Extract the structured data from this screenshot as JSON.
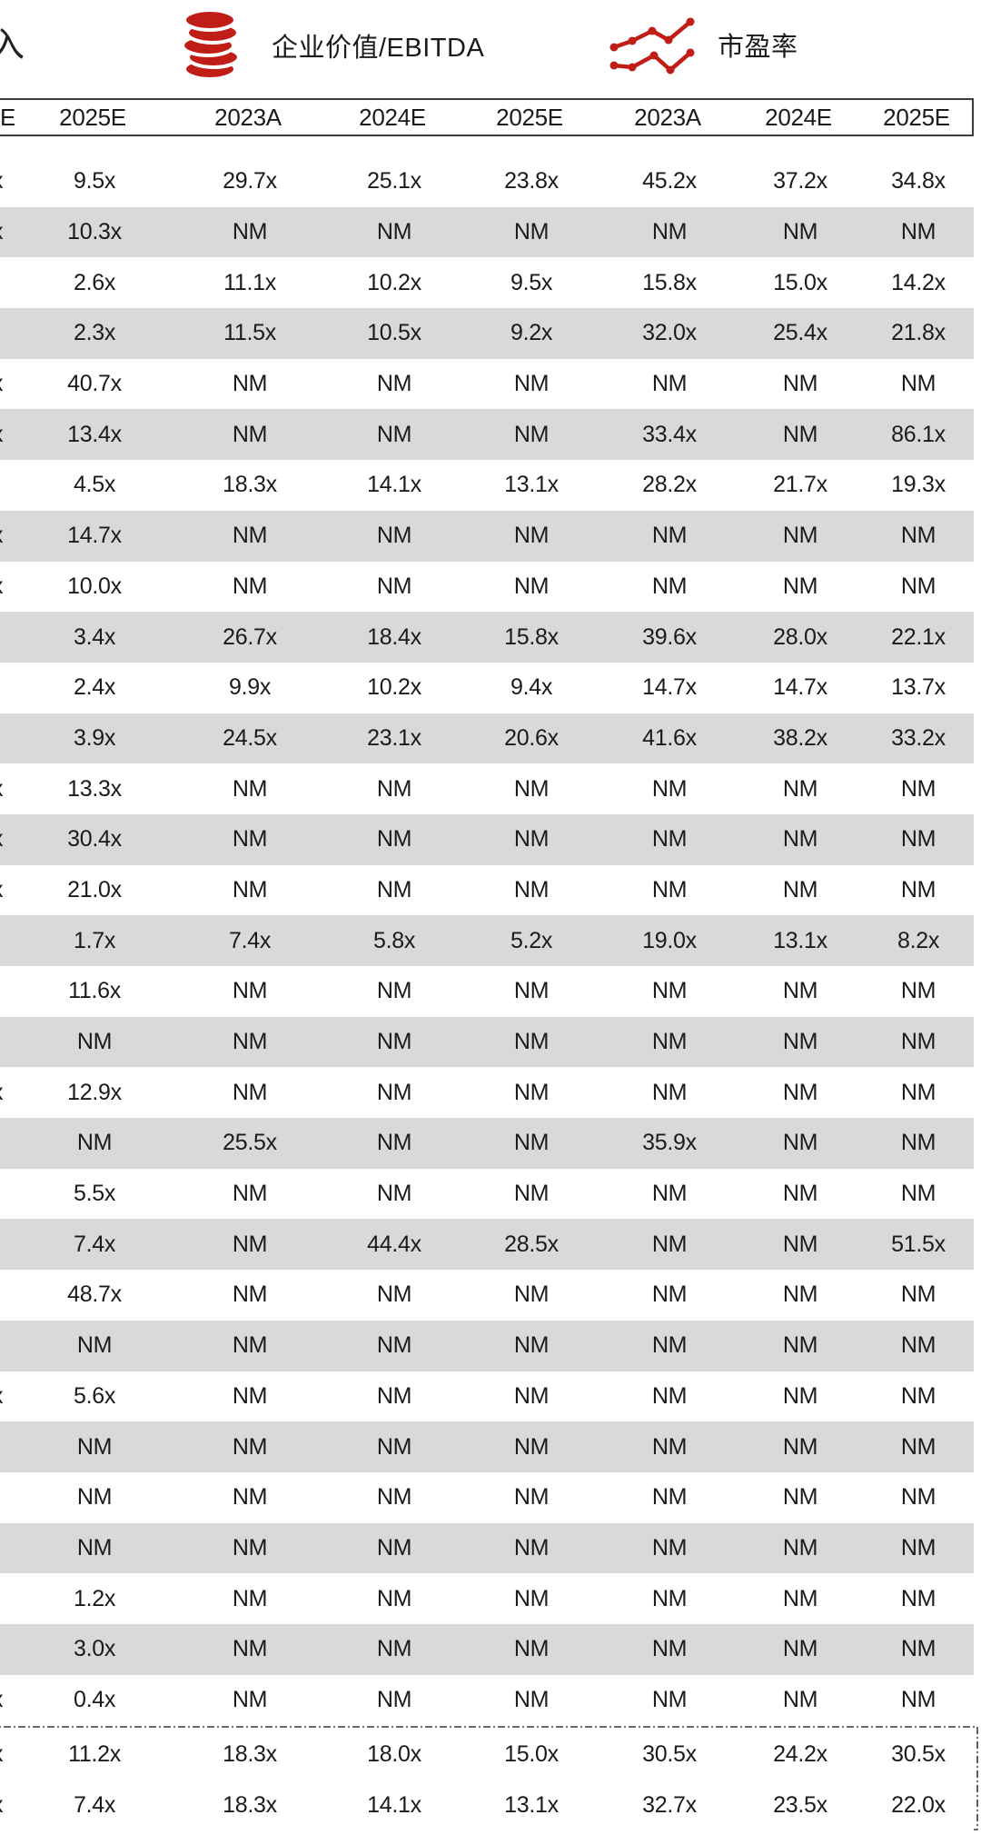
{
  "header": {
    "cutoff_fragment": "入",
    "metrics": [
      {
        "icon": "coins-icon",
        "label": "企业价值/EBITDA"
      },
      {
        "icon": "line-chart-icon",
        "label": "市盈率"
      }
    ]
  },
  "table": {
    "column_headers": [
      "E",
      "2025E",
      "2023A",
      "2024E",
      "2025E",
      "2023A",
      "2024E",
      "2025E"
    ],
    "rows": [
      [
        "x",
        "9.5x",
        "29.7x",
        "25.1x",
        "23.8x",
        "45.2x",
        "37.2x",
        "34.8x"
      ],
      [
        "x",
        "10.3x",
        "NM",
        "NM",
        "NM",
        "NM",
        "NM",
        "NM"
      ],
      [
        "",
        "2.6x",
        "11.1x",
        "10.2x",
        "9.5x",
        "15.8x",
        "15.0x",
        "14.2x"
      ],
      [
        "",
        "2.3x",
        "11.5x",
        "10.5x",
        "9.2x",
        "32.0x",
        "25.4x",
        "21.8x"
      ],
      [
        "x",
        "40.7x",
        "NM",
        "NM",
        "NM",
        "NM",
        "NM",
        "NM"
      ],
      [
        "x",
        "13.4x",
        "NM",
        "NM",
        "NM",
        "33.4x",
        "NM",
        "86.1x"
      ],
      [
        "",
        "4.5x",
        "18.3x",
        "14.1x",
        "13.1x",
        "28.2x",
        "21.7x",
        "19.3x"
      ],
      [
        "x",
        "14.7x",
        "NM",
        "NM",
        "NM",
        "NM",
        "NM",
        "NM"
      ],
      [
        "x",
        "10.0x",
        "NM",
        "NM",
        "NM",
        "NM",
        "NM",
        "NM"
      ],
      [
        "",
        "3.4x",
        "26.7x",
        "18.4x",
        "15.8x",
        "39.6x",
        "28.0x",
        "22.1x"
      ],
      [
        "",
        "2.4x",
        "9.9x",
        "10.2x",
        "9.4x",
        "14.7x",
        "14.7x",
        "13.7x"
      ],
      [
        "",
        "3.9x",
        "24.5x",
        "23.1x",
        "20.6x",
        "41.6x",
        "38.2x",
        "33.2x"
      ],
      [
        "x",
        "13.3x",
        "NM",
        "NM",
        "NM",
        "NM",
        "NM",
        "NM"
      ],
      [
        "x",
        "30.4x",
        "NM",
        "NM",
        "NM",
        "NM",
        "NM",
        "NM"
      ],
      [
        "x",
        "21.0x",
        "NM",
        "NM",
        "NM",
        "NM",
        "NM",
        "NM"
      ],
      [
        "",
        "1.7x",
        "7.4x",
        "5.8x",
        "5.2x",
        "19.0x",
        "13.1x",
        "8.2x"
      ],
      [
        "",
        "11.6x",
        "NM",
        "NM",
        "NM",
        "NM",
        "NM",
        "NM"
      ],
      [
        "",
        "NM",
        "NM",
        "NM",
        "NM",
        "NM",
        "NM",
        "NM"
      ],
      [
        "x",
        "12.9x",
        "NM",
        "NM",
        "NM",
        "NM",
        "NM",
        "NM"
      ],
      [
        "",
        "NM",
        "25.5x",
        "NM",
        "NM",
        "35.9x",
        "NM",
        "NM"
      ],
      [
        "",
        "5.5x",
        "NM",
        "NM",
        "NM",
        "NM",
        "NM",
        "NM"
      ],
      [
        "",
        "7.4x",
        "NM",
        "44.4x",
        "28.5x",
        "NM",
        "NM",
        "51.5x"
      ],
      [
        "",
        "48.7x",
        "NM",
        "NM",
        "NM",
        "NM",
        "NM",
        "NM"
      ],
      [
        "",
        "NM",
        "NM",
        "NM",
        "NM",
        "NM",
        "NM",
        "NM"
      ],
      [
        "x",
        "5.6x",
        "NM",
        "NM",
        "NM",
        "NM",
        "NM",
        "NM"
      ],
      [
        "",
        "NM",
        "NM",
        "NM",
        "NM",
        "NM",
        "NM",
        "NM"
      ],
      [
        "",
        "NM",
        "NM",
        "NM",
        "NM",
        "NM",
        "NM",
        "NM"
      ],
      [
        "",
        "NM",
        "NM",
        "NM",
        "NM",
        "NM",
        "NM",
        "NM"
      ],
      [
        "",
        "1.2x",
        "NM",
        "NM",
        "NM",
        "NM",
        "NM",
        "NM"
      ],
      [
        "",
        "3.0x",
        "NM",
        "NM",
        "NM",
        "NM",
        "NM",
        "NM"
      ],
      [
        "x",
        "0.4x",
        "NM",
        "NM",
        "NM",
        "NM",
        "NM",
        "NM"
      ]
    ],
    "summary_rows": [
      [
        "x",
        "11.2x",
        "18.3x",
        "18.0x",
        "15.0x",
        "30.5x",
        "24.2x",
        "30.5x"
      ],
      [
        "x",
        "7.4x",
        "18.3x",
        "14.1x",
        "13.1x",
        "32.7x",
        "23.5x",
        "22.0x"
      ]
    ]
  },
  "colors": {
    "accent_red": "#bf1d15",
    "row_alt_gray": "#d9d9d9",
    "header_border": "#3c3c3c",
    "text": "#1b1b1b"
  }
}
